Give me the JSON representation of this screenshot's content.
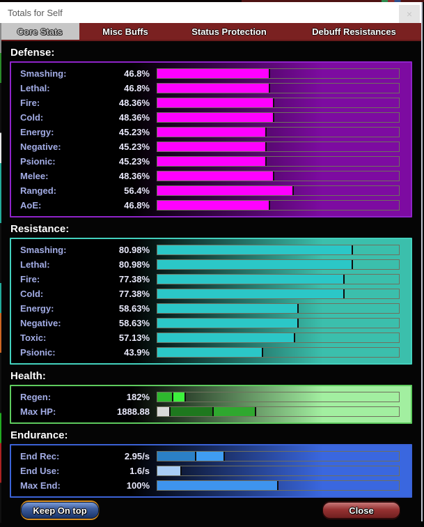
{
  "window": {
    "title": "Totals for Self",
    "close_glyph": "×"
  },
  "tabs": [
    {
      "label": "Core Stats",
      "active": true
    },
    {
      "label": "Misc Buffs",
      "active": false
    },
    {
      "label": "Status Protection",
      "active": false
    },
    {
      "label": "Debuff Resistances",
      "active": false
    }
  ],
  "colors": {
    "defense_fill": "#ff00ff",
    "resistance_fill": "#2bc7c7",
    "tab_maroon": "#7a2121",
    "label_text": "#a3ade6",
    "value_text": "#e9e9fb"
  },
  "chart_data": [
    {
      "type": "bar",
      "title": "Defense",
      "categories": [
        "Smashing",
        "Lethal",
        "Fire",
        "Cold",
        "Energy",
        "Negative",
        "Psionic",
        "Melee",
        "Ranged",
        "AoE"
      ],
      "values": [
        46.8,
        46.8,
        48.36,
        48.36,
        45.23,
        45.23,
        45.23,
        48.36,
        56.4,
        46.8
      ],
      "unit": "%",
      "xlim": [
        0,
        100
      ]
    },
    {
      "type": "bar",
      "title": "Resistance",
      "categories": [
        "Smashing",
        "Lethal",
        "Fire",
        "Cold",
        "Energy",
        "Negative",
        "Toxic",
        "Psionic"
      ],
      "values": [
        80.98,
        80.98,
        77.38,
        77.38,
        58.63,
        58.63,
        57.13,
        43.9
      ],
      "unit": "%",
      "xlim": [
        0,
        100
      ]
    },
    {
      "type": "bar",
      "title": "Health",
      "categories": [
        "Regen",
        "Max HP"
      ],
      "values": [
        182,
        1888.88
      ]
    },
    {
      "type": "bar",
      "title": "Endurance",
      "categories": [
        "End Rec",
        "End Use",
        "Max End"
      ],
      "values": [
        2.95,
        1.6,
        100
      ]
    }
  ],
  "sections": [
    {
      "header": "Defense:",
      "border_color": "#8f23c9",
      "glow_color": "#7d0ba1",
      "rows": [
        {
          "label": "Smashing:",
          "value": "46.8%",
          "segments": [
            {
              "color": "#ff00ff",
              "pct": 46.8
            }
          ]
        },
        {
          "label": "Lethal:",
          "value": "46.8%",
          "segments": [
            {
              "color": "#ff00ff",
              "pct": 46.8
            }
          ]
        },
        {
          "label": "Fire:",
          "value": "48.36%",
          "segments": [
            {
              "color": "#ff00ff",
              "pct": 48.36
            }
          ]
        },
        {
          "label": "Cold:",
          "value": "48.36%",
          "segments": [
            {
              "color": "#ff00ff",
              "pct": 48.36
            }
          ]
        },
        {
          "label": "Energy:",
          "value": "45.23%",
          "segments": [
            {
              "color": "#ff00ff",
              "pct": 45.23
            }
          ]
        },
        {
          "label": "Negative:",
          "value": "45.23%",
          "segments": [
            {
              "color": "#ff00ff",
              "pct": 45.23
            }
          ]
        },
        {
          "label": "Psionic:",
          "value": "45.23%",
          "segments": [
            {
              "color": "#ff00ff",
              "pct": 45.23
            }
          ]
        },
        {
          "label": "Melee:",
          "value": "48.36%",
          "segments": [
            {
              "color": "#ff00ff",
              "pct": 48.36
            }
          ]
        },
        {
          "label": "Ranged:",
          "value": "56.4%",
          "segments": [
            {
              "color": "#ff00ff",
              "pct": 56.4
            }
          ]
        },
        {
          "label": "AoE:",
          "value": "46.8%",
          "segments": [
            {
              "color": "#ff00ff",
              "pct": 46.8
            }
          ]
        }
      ]
    },
    {
      "header": "Resistance:",
      "border_color": "#43d1be",
      "glow_color": "#3bbfac",
      "rows": [
        {
          "label": "Smashing:",
          "value": "80.98%",
          "segments": [
            {
              "color": "#2bc7c7",
              "pct": 80.98
            }
          ]
        },
        {
          "label": "Lethal:",
          "value": "80.98%",
          "segments": [
            {
              "color": "#2bc7c7",
              "pct": 80.98
            }
          ]
        },
        {
          "label": "Fire:",
          "value": "77.38%",
          "segments": [
            {
              "color": "#2bc7c7",
              "pct": 77.38
            }
          ]
        },
        {
          "label": "Cold:",
          "value": "77.38%",
          "segments": [
            {
              "color": "#2bc7c7",
              "pct": 77.38
            }
          ]
        },
        {
          "label": "Energy:",
          "value": "58.63%",
          "segments": [
            {
              "color": "#2bc7c7",
              "pct": 58.63
            }
          ]
        },
        {
          "label": "Negative:",
          "value": "58.63%",
          "segments": [
            {
              "color": "#2bc7c7",
              "pct": 58.63
            }
          ]
        },
        {
          "label": "Toxic:",
          "value": "57.13%",
          "segments": [
            {
              "color": "#2bc7c7",
              "pct": 57.13
            }
          ]
        },
        {
          "label": "Psionic:",
          "value": "43.9%",
          "segments": [
            {
              "color": "#2bc7c7",
              "pct": 43.9
            }
          ]
        }
      ]
    },
    {
      "header": "Health:",
      "border_color": "#5ecb5e",
      "glow_color": "#a2efa0",
      "rows": [
        {
          "label": "Regen:",
          "value": "182%",
          "segments": [
            {
              "color": "#2eb82e",
              "pct": 6.7
            },
            {
              "color": "#3df03d",
              "pct": 5.1
            }
          ]
        },
        {
          "label": "Max HP:",
          "value": "1888.88",
          "segments": [
            {
              "color": "#d9d9d9",
              "pct": 5.4
            },
            {
              "color": "#1e781e",
              "pct": 17.8
            },
            {
              "color": "#2fa82f",
              "pct": 17.6
            }
          ]
        }
      ]
    },
    {
      "header": "Endurance:",
      "border_color": "#3b62d6",
      "glow_color": "#3a67df",
      "rows": [
        {
          "label": "End Rec:",
          "value": "2.95/s",
          "segments": [
            {
              "color": "#2b80c6",
              "pct": 16.2
            },
            {
              "color": "#3f9df2",
              "pct": 11.9
            }
          ]
        },
        {
          "label": "End Use:",
          "value": "1.6/s",
          "segments": [
            {
              "color": "#a9cdf5",
              "pct": 10.1
            }
          ]
        },
        {
          "label": "Max End:",
          "value": "100%",
          "segments": [
            {
              "color": "#3e94ee",
              "pct": 50
            }
          ]
        }
      ]
    }
  ],
  "footer": {
    "keep_on_top_label": "Keep On top",
    "close_label": "Close"
  }
}
